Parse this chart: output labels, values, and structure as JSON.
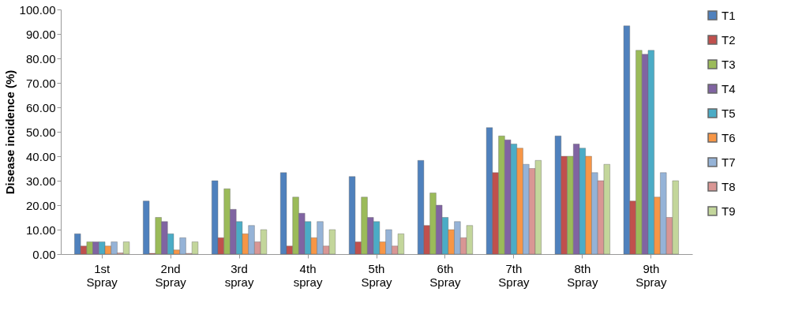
{
  "chart_data": {
    "type": "bar",
    "ylabel": "Disease incidence (%)",
    "categories": [
      "1st Spray",
      "2nd Spray",
      "3rd spray",
      "4th spray",
      "5th Spray",
      "6th Spray",
      "7th Spray",
      "8th Spray",
      "9th Spray"
    ],
    "series": [
      {
        "name": "T1",
        "color": "#4f81bd",
        "values": [
          8.3,
          21.7,
          30,
          33.3,
          31.7,
          38.3,
          51.7,
          48.3,
          93.3
        ]
      },
      {
        "name": "T2",
        "color": "#c0504d",
        "values": [
          3.3,
          0.3,
          6.7,
          3.3,
          5,
          11.7,
          33.3,
          40,
          21.7
        ]
      },
      {
        "name": "T3",
        "color": "#9bbb59",
        "values": [
          5,
          15,
          26.7,
          23.3,
          23.3,
          25,
          48.3,
          40,
          83.3
        ]
      },
      {
        "name": "T4",
        "color": "#8064a2",
        "values": [
          5,
          13.3,
          18.3,
          16.7,
          15,
          20,
          46.7,
          45,
          81.7
        ]
      },
      {
        "name": "T5",
        "color": "#4bacc6",
        "values": [
          5,
          8.3,
          13.3,
          13.3,
          13.3,
          15,
          45,
          43.3,
          83.3
        ]
      },
      {
        "name": "T6",
        "color": "#f79646",
        "values": [
          3.3,
          1.7,
          8.3,
          6.7,
          5,
          10,
          43.3,
          40,
          23.3
        ]
      },
      {
        "name": "T7",
        "color": "#95b3d7",
        "values": [
          5,
          6.7,
          11.7,
          13.3,
          10,
          13.3,
          36.7,
          33.3,
          33.3
        ]
      },
      {
        "name": "T8",
        "color": "#d99694",
        "values": [
          0.5,
          0.3,
          5,
          3.3,
          3.3,
          6.7,
          35,
          30,
          15
        ]
      },
      {
        "name": "T9",
        "color": "#c3d69b",
        "values": [
          5,
          5,
          10,
          10,
          8.3,
          11.7,
          38.3,
          36.7,
          30
        ]
      }
    ],
    "ylim": [
      0,
      100
    ],
    "yticks": [
      {
        "value": 0,
        "label": "0.00"
      },
      {
        "value": 10,
        "label": "10.00"
      },
      {
        "value": 20,
        "label": "20.00"
      },
      {
        "value": 30,
        "label": "30.00"
      },
      {
        "value": 40,
        "label": "40.00"
      },
      {
        "value": 50,
        "label": "50.00"
      },
      {
        "value": 60,
        "label": "60.00"
      },
      {
        "value": 70,
        "label": "70.00"
      },
      {
        "value": 80,
        "label": "80.00"
      },
      {
        "value": 90,
        "label": "90.00"
      },
      {
        "value": 100,
        "label": "100.00"
      }
    ],
    "grid": false,
    "legend": "right"
  }
}
